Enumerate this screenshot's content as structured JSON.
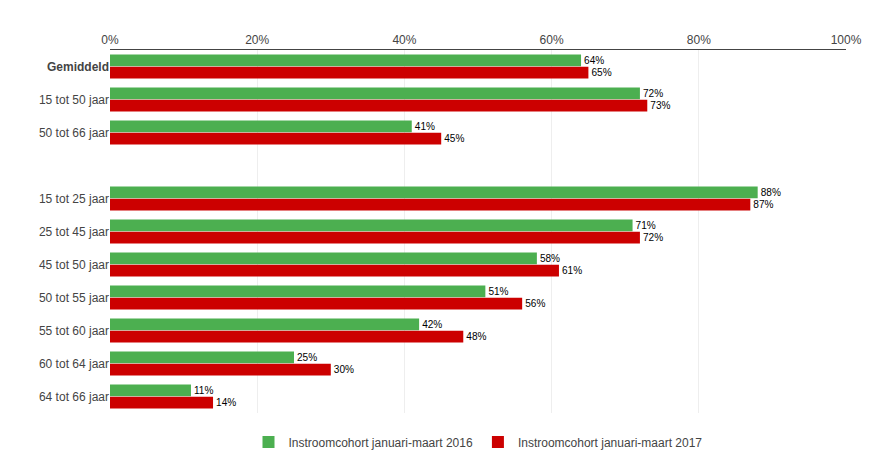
{
  "chart_data": {
    "type": "bar",
    "orientation": "horizontal",
    "categories": [
      "Gemiddeld",
      "15 tot 50 jaar",
      "50 tot 66 jaar",
      null,
      "15 tot 25 jaar",
      "25 tot 45 jaar",
      "45 tot 50 jaar",
      "50 tot 55 jaar",
      "55 tot 60 jaar",
      "60 tot 64 jaar",
      "64 tot 66 jaar"
    ],
    "series": [
      {
        "name": "Instroomcohort januari-maart 2016",
        "color": "#4CAF50",
        "values": [
          64,
          72,
          41,
          null,
          88,
          71,
          58,
          51,
          42,
          25,
          11
        ],
        "value_labels": [
          "64%",
          "72%",
          "41%",
          null,
          "88%",
          "71%",
          "58%",
          "51%",
          "42%",
          "25%",
          "11%"
        ]
      },
      {
        "name": "Instroomcohort januari-maart 2017",
        "color": "#CC0000",
        "values": [
          65,
          73,
          45,
          null,
          87,
          72,
          61,
          56,
          48,
          30,
          14
        ],
        "value_labels": [
          "65%",
          "73%",
          "45%",
          null,
          "87%",
          "72%",
          "61%",
          "56%",
          "48%",
          "30%",
          "14%"
        ]
      }
    ],
    "xlim": [
      0,
      100
    ],
    "xticks": [
      {
        "value": 0,
        "label": "0%"
      },
      {
        "value": 20,
        "label": "20%"
      },
      {
        "value": 40,
        "label": "40%"
      },
      {
        "value": 60,
        "label": "60%"
      },
      {
        "value": 80,
        "label": "80%"
      },
      {
        "value": 100,
        "label": "100%"
      }
    ],
    "grid": true,
    "data_labels": true,
    "legend": "bottom"
  }
}
